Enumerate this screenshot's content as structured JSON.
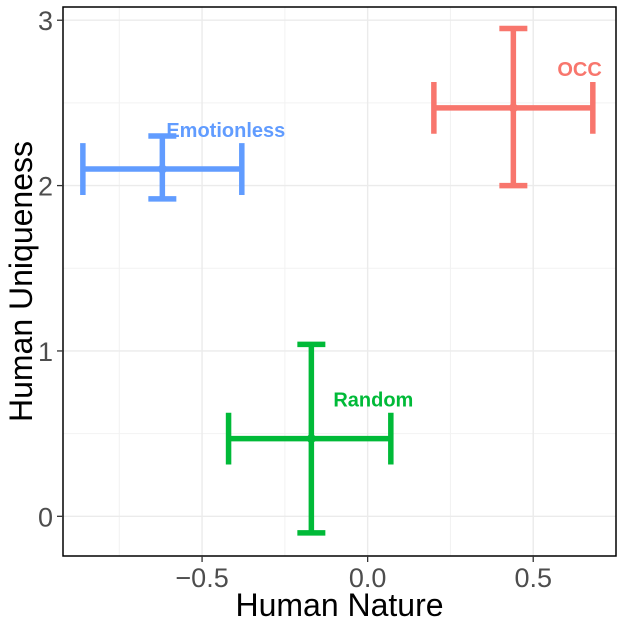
{
  "chart_data": {
    "type": "scatter",
    "title": "",
    "xlabel": "Human Nature",
    "ylabel": "Human Uniqueness",
    "xlim": [
      -0.92,
      0.75
    ],
    "ylim": [
      -0.24,
      3.08
    ],
    "grid": true,
    "x_ticks": [
      {
        "value": -0.5,
        "label": "−0.5"
      },
      {
        "value": 0.0,
        "label": "0.0"
      },
      {
        "value": 0.5,
        "label": "0.5"
      }
    ],
    "y_ticks": [
      {
        "value": 0,
        "label": "0"
      },
      {
        "value": 1,
        "label": "1"
      },
      {
        "value": 2,
        "label": "2"
      },
      {
        "value": 3,
        "label": "3"
      }
    ],
    "series": [
      {
        "name": "OCC",
        "label": "OCC",
        "color": "#F8766D",
        "x": 0.44,
        "y": 2.47,
        "x_low": 0.2,
        "x_high": 0.68,
        "y_low": 2.0,
        "y_high": 2.95
      },
      {
        "name": "Emotionless",
        "label": "Emotionless",
        "color": "#619CFF",
        "x": -0.62,
        "y": 2.1,
        "x_low": -0.86,
        "x_high": -0.38,
        "y_low": 1.92,
        "y_high": 2.3
      },
      {
        "name": "Random",
        "label": "Random",
        "color": "#00BA38",
        "x": -0.17,
        "y": 0.47,
        "x_low": -0.42,
        "x_high": 0.07,
        "y_low": -0.1,
        "y_high": 1.04
      }
    ]
  }
}
